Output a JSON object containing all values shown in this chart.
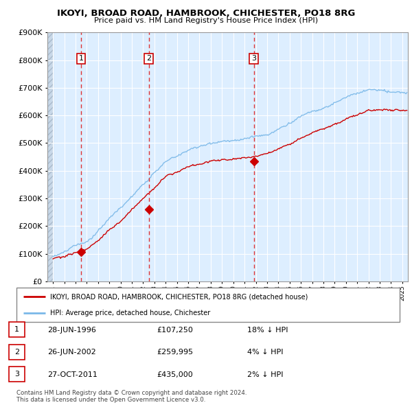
{
  "title": "IKOYI, BROAD ROAD, HAMBROOK, CHICHESTER, PO18 8RG",
  "subtitle": "Price paid vs. HM Land Registry's House Price Index (HPI)",
  "sale_prices": [
    107250,
    259995,
    435000
  ],
  "sale_labels": [
    "1",
    "2",
    "3"
  ],
  "legend_line1": "IKOYI, BROAD ROAD, HAMBROOK, CHICHESTER, PO18 8RG (detached house)",
  "legend_line2": "HPI: Average price, detached house, Chichester",
  "table_rows": [
    [
      "1",
      "28-JUN-1996",
      "£107,250",
      "18% ↓ HPI"
    ],
    [
      "2",
      "26-JUN-2002",
      "£259,995",
      "4% ↓ HPI"
    ],
    [
      "3",
      "27-OCT-2011",
      "£435,000",
      "2% ↓ HPI"
    ]
  ],
  "footnote1": "Contains HM Land Registry data © Crown copyright and database right 2024.",
  "footnote2": "This data is licensed under the Open Government Licence v3.0.",
  "hpi_color": "#7ab8e8",
  "price_color": "#cc0000",
  "dashed_color": "#dd3333",
  "plot_bg_color": "#ddeeff",
  "ylim": [
    0,
    900000
  ],
  "yticks": [
    0,
    100000,
    200000,
    300000,
    400000,
    500000,
    600000,
    700000,
    800000,
    900000
  ],
  "xlim_start": 1993.5,
  "xlim_end": 2025.5,
  "sale_years": [
    1996.496,
    2002.496,
    2011.829
  ]
}
